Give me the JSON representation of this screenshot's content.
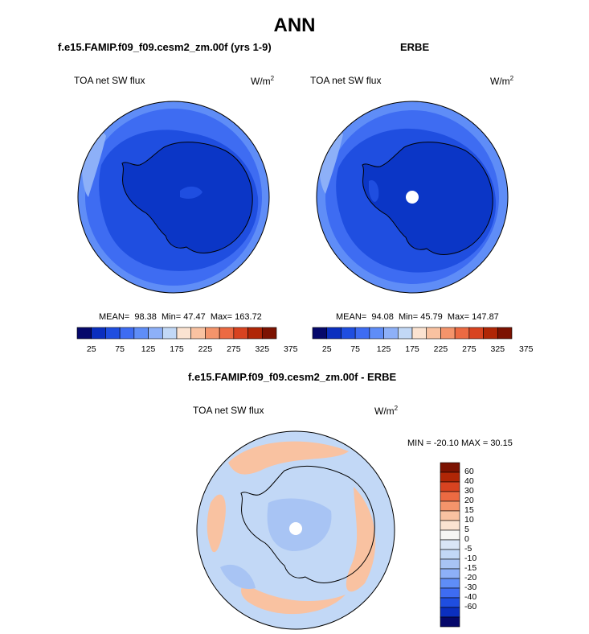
{
  "title": "ANN",
  "panels": [
    {
      "subtitle": "f.e15.FAMIP.f09_f09.cesm2_zm.00f (yrs 1-9)",
      "left_label": "TOA net SW flux",
      "units": "W/m",
      "units_sup": "2",
      "stats": {
        "mean_label": "MEAN=",
        "mean": "98.38",
        "min_label": "Min=",
        "min": "47.47",
        "max_label": "Max=",
        "max": "163.72"
      }
    },
    {
      "subtitle": "ERBE",
      "left_label": "TOA net SW flux",
      "units": "W/m",
      "units_sup": "2",
      "stats": {
        "mean_label": "MEAN=",
        "mean": "94.08",
        "min_label": "Min=",
        "min": "45.79",
        "max_label": "Max=",
        "max": "147.87"
      }
    }
  ],
  "colorbar_top": {
    "colors": [
      "#05086b",
      "#0b2fbf",
      "#1f4ee0",
      "#3e6cf2",
      "#5f8df7",
      "#8db0f8",
      "#c2d8f6",
      "#fbe3d1",
      "#f9c2a1",
      "#f4946b",
      "#ec6a42",
      "#d84320",
      "#b02606",
      "#7c1201"
    ],
    "tick_labels": [
      "25",
      "75",
      "125",
      "175",
      "225",
      "275",
      "325",
      "375"
    ]
  },
  "diff_panel": {
    "subtitle": "f.e15.FAMIP.f09_f09.cesm2_zm.00f - ERBE",
    "left_label": "TOA net SW flux",
    "units": "W/m",
    "units_sup": "2",
    "minmax_text": "MIN = -20.10 MAX =  30.15"
  },
  "colorbar_diff": {
    "colors": [
      "#7c1201",
      "#b02606",
      "#d84320",
      "#ec6a42",
      "#f4946b",
      "#f9c2a1",
      "#fbe3d1",
      "#f6f6f4",
      "#d9e5f6",
      "#c2d8f6",
      "#a8c4f4",
      "#8db0f8",
      "#5f8df7",
      "#3e6cf2",
      "#1f4ee0",
      "#0b2fbf",
      "#05086b"
    ],
    "tick_labels": [
      "60",
      "40",
      "30",
      "20",
      "15",
      "10",
      "5",
      "0",
      "-5",
      "-10",
      "-15",
      "-20",
      "-30",
      "-40",
      "-60"
    ]
  },
  "palette": {
    "deep_blue": "#0b36c6",
    "mid_blue": "#1f4ee0",
    "blue": "#3e6cf2",
    "light_blue": "#5f8df7",
    "pale_blue": "#8db0f8",
    "diff_bg": "#c2d8f6",
    "diff_pos": "#f9c2a1",
    "diff_neg": "#a8c4f4"
  }
}
